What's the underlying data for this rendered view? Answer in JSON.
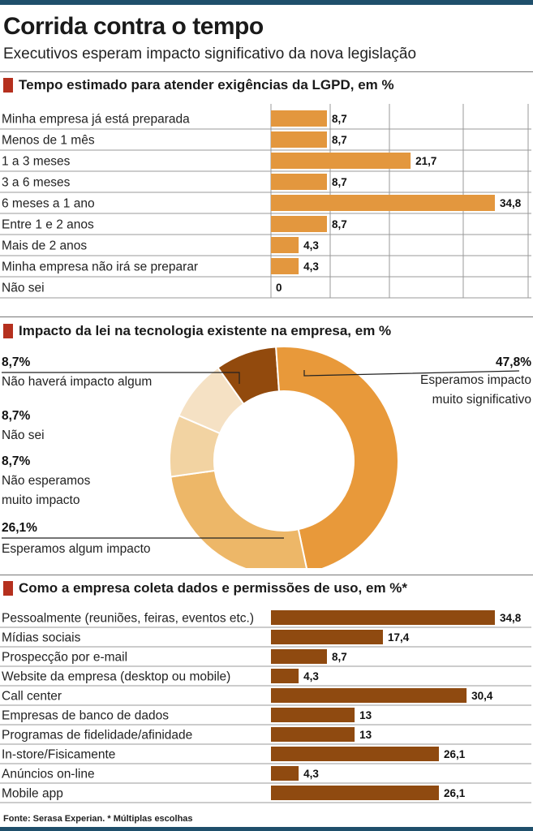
{
  "header": {
    "title": "Corrida contra o tempo",
    "subtitle": "Executivos esperam impacto significativo da nova legislação"
  },
  "sections": {
    "s1_title": "Tempo estimado para atender exigências da LGPD, em %",
    "s2_title": "Impacto da lei na tecnologia existente na empresa, em %",
    "s3_title": "Como a empresa coleta dados e permissões de uso, em %*"
  },
  "footer": {
    "source": "Fonte: Serasa Experian. * Múltiplas escolhas"
  },
  "colors": {
    "bar1": "#e3973e",
    "bar3": "#8f4a10",
    "donut": [
      "#e8993a",
      "#edb768",
      "#f2d3a2",
      "#f5e1c4",
      "#924a0d"
    ],
    "accent": "#b5301e",
    "rule": "#1f4f6b"
  },
  "chart_data": [
    {
      "type": "bar",
      "title": "Tempo estimado para atender exigências da LGPD, em %",
      "orientation": "horizontal",
      "categories": [
        "Minha empresa já está preparada",
        "Menos de 1 mês",
        "1 a 3 meses",
        "3 a 6 meses",
        "6 meses a 1 ano",
        "Entre 1 e 2 anos",
        "Mais de 2 anos",
        "Minha empresa não irá se preparar",
        "Não sei"
      ],
      "values": [
        8.7,
        8.7,
        21.7,
        8.7,
        34.8,
        8.7,
        4.3,
        4.3,
        0
      ],
      "value_labels": [
        "8,7",
        "8,7",
        "21,7",
        "8,7",
        "34,8",
        "8,7",
        "4,3",
        "4,3",
        "0"
      ],
      "xlim": [
        0,
        34.8
      ],
      "grid": true
    },
    {
      "type": "pie",
      "style": "donut",
      "title": "Impacto da lei na tecnologia existente na empresa, em %",
      "slices": [
        {
          "label": "Esperamos impacto muito significativo",
          "value": 47.8,
          "pct_label": "47,8%"
        },
        {
          "label": "Esperamos algum impacto",
          "value": 26.1,
          "pct_label": "26,1%"
        },
        {
          "label": "Não esperamos muito impacto",
          "value": 8.7,
          "pct_label": "8,7%"
        },
        {
          "label": "Não sei",
          "value": 8.7,
          "pct_label": "8,7%"
        },
        {
          "label": "Não haverá impacto algum",
          "value": 8.7,
          "pct_label": "8,7%"
        }
      ]
    },
    {
      "type": "bar",
      "title": "Como a empresa coleta dados e permissões de uso, em %*",
      "orientation": "horizontal",
      "categories": [
        "Pessoalmente (reuniões, feiras, eventos etc.)",
        "Mídias sociais",
        "Prospecção por e-mail",
        "Website da empresa (desktop ou mobile)",
        "Call center",
        "Empresas de banco de dados",
        "Programas de fidelidade/afinidade",
        "In-store/Fisicamente",
        "Anúncios on-line",
        "Mobile app"
      ],
      "values": [
        34.8,
        17.4,
        8.7,
        4.3,
        30.4,
        13,
        13,
        26.1,
        4.3,
        26.1
      ],
      "value_labels": [
        "34,8",
        "17,4",
        "8,7",
        "4,3",
        "30,4",
        "13",
        "13",
        "26,1",
        "4,3",
        "26,1"
      ],
      "xlim": [
        0,
        34.8
      ],
      "grid": false
    }
  ]
}
